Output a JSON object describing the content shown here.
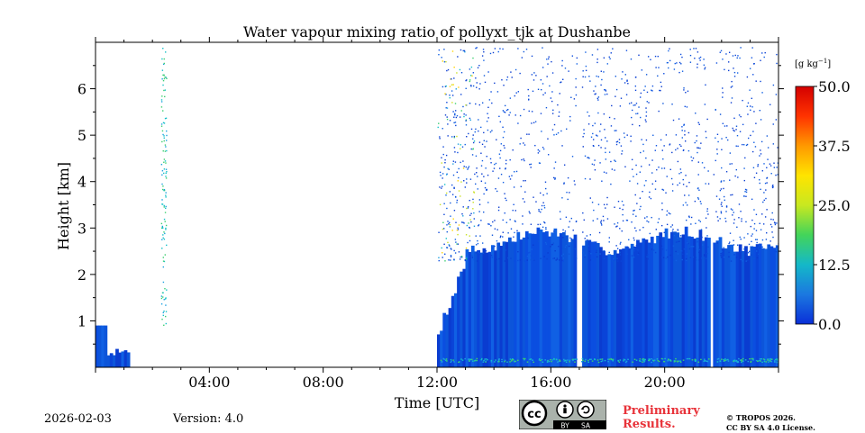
{
  "chart_data": {
    "type": "heatmap",
    "title": "Water vapour mixing ratio of pollyxt_tjk at Dushanbe",
    "xlabel": "Time [UTC]",
    "ylabel": "Height [km]",
    "xlim_hours": [
      0,
      24
    ],
    "ylim_km": [
      0,
      7
    ],
    "x_ticks": [
      {
        "hour": 4,
        "label": "04:00"
      },
      {
        "hour": 8,
        "label": "08:00"
      },
      {
        "hour": 12,
        "label": "12:00"
      },
      {
        "hour": 16,
        "label": "16:00"
      },
      {
        "hour": 20,
        "label": "20:00"
      }
    ],
    "y_ticks": [
      {
        "km": 1,
        "label": "1"
      },
      {
        "km": 2,
        "label": "2"
      },
      {
        "km": 3,
        "label": "3"
      },
      {
        "km": 4,
        "label": "4"
      },
      {
        "km": 5,
        "label": "5"
      },
      {
        "km": 6,
        "label": "6"
      }
    ],
    "colorbar": {
      "unit": "[g kg",
      "unit_exp": "−1",
      "unit_close": "]",
      "range": [
        0,
        50
      ],
      "ticks": [
        {
          "value": 50,
          "label": "50.0"
        },
        {
          "value": 37.5,
          "label": "37.5"
        },
        {
          "value": 25,
          "label": "25.0"
        },
        {
          "value": 12.5,
          "label": "12.5"
        },
        {
          "value": 0,
          "label": "0.0"
        }
      ],
      "colors": [
        "#0a2fd8",
        "#1b78e0",
        "#14b8c8",
        "#43d45a",
        "#c8e820",
        "#ffe400",
        "#ff9900",
        "#ff3300",
        "#d40000"
      ]
    },
    "data_regions": [
      {
        "start_hour": 0.0,
        "end_hour": 2.5,
        "top_km": 0.9,
        "note": "early morning segment"
      },
      {
        "start_hour": 12.0,
        "end_hour": 24.0,
        "top_km": 3.0,
        "note": "afternoon/evening segment"
      }
    ],
    "data_gaps_hours": [
      [
        16.9,
        17.05
      ],
      [
        21.55,
        21.7
      ]
    ],
    "typical_value_g_per_kg": 3
  },
  "footer": {
    "date": "2026-02-03",
    "version": "Version: 4.0",
    "preliminary_line1": "Preliminary",
    "preliminary_line2": "Results.",
    "copyright_line1": "© TROPOS 2026.",
    "copyright_line2": "CC BY SA 4.0 License.",
    "cc_label": "cc",
    "by_label": "BY",
    "sa_label": "SA"
  }
}
